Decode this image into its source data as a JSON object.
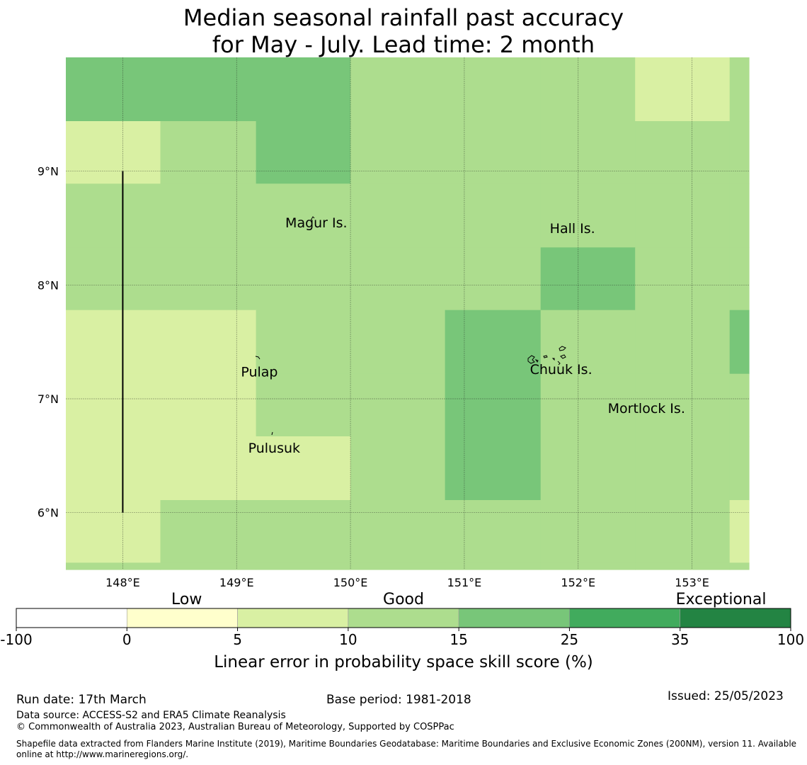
{
  "title": {
    "line1": "Median seasonal rainfall past accuracy",
    "line2": "for May - July. Lead time: 2 month"
  },
  "map": {
    "lon_range": [
      147.5,
      153.5
    ],
    "lat_range": [
      5.5,
      10.0
    ],
    "lon_ticks": [
      {
        "value": 148,
        "label": "148°E"
      },
      {
        "value": 149,
        "label": "149°E"
      },
      {
        "value": 150,
        "label": "150°E"
      },
      {
        "value": 151,
        "label": "151°E"
      },
      {
        "value": 152,
        "label": "152°E"
      },
      {
        "value": 153,
        "label": "153°E"
      }
    ],
    "lat_ticks": [
      {
        "value": 9,
        "label": "9°N"
      },
      {
        "value": 8,
        "label": "8°N"
      },
      {
        "value": 7,
        "label": "7°N"
      },
      {
        "value": 6,
        "label": "6°N"
      }
    ],
    "cell_lon_edges": [
      147.5,
      148.33,
      149.17,
      150.0,
      150.83,
      151.67,
      152.5,
      153.33,
      153.5
    ],
    "cell_lat_edges": [
      10.0,
      9.44,
      8.89,
      8.33,
      7.78,
      7.22,
      6.67,
      6.11,
      5.56,
      5.5
    ],
    "skill_class_grid": [
      [
        4,
        4,
        4,
        3,
        3,
        3,
        2,
        3
      ],
      [
        2,
        3,
        4,
        3,
        3,
        3,
        3,
        3
      ],
      [
        3,
        3,
        3,
        3,
        3,
        3,
        3,
        3
      ],
      [
        3,
        3,
        3,
        3,
        3,
        4,
        3,
        3
      ],
      [
        2,
        2,
        3,
        3,
        4,
        3,
        3,
        4
      ],
      [
        2,
        2,
        3,
        3,
        4,
        3,
        3,
        3
      ],
      [
        2,
        2,
        2,
        3,
        4,
        3,
        3,
        3
      ],
      [
        2,
        3,
        3,
        3,
        3,
        3,
        3,
        2
      ],
      [
        3,
        3,
        3,
        3,
        3,
        3,
        3,
        3
      ]
    ],
    "boundary_line": {
      "lon": 148.0,
      "lat_from": 6.0,
      "lat_to": 9.0
    },
    "islands": [
      {
        "name": "Magur Is.",
        "lon": 149.7,
        "lat": 8.55
      },
      {
        "name": "Hall Is.",
        "lon": 151.95,
        "lat": 8.5
      },
      {
        "name": "Pulap",
        "lon": 149.2,
        "lat": 7.24
      },
      {
        "name": "Chuuk Is.",
        "lon": 151.85,
        "lat": 7.26
      },
      {
        "name": "Mortlock Is.",
        "lon": 152.6,
        "lat": 6.92
      },
      {
        "name": "Pulusuk",
        "lon": 149.33,
        "lat": 6.57
      }
    ]
  },
  "colorbar": {
    "categories": [
      {
        "label": "Low",
        "position": 0.22
      },
      {
        "label": "Good",
        "position": 0.5
      },
      {
        "label": "Exceptional",
        "position": 0.91
      }
    ],
    "colors": [
      "#ffffff",
      "#ffffcc",
      "#d9f0a3",
      "#addd8e",
      "#78c679",
      "#41ab5d",
      "#238443"
    ],
    "ticks": [
      "-100",
      "0",
      "5",
      "10",
      "15",
      "25",
      "35",
      "100"
    ],
    "label": "Linear error in probability space skill score (%)"
  },
  "footer": {
    "run_date": "Run date: 17th March",
    "base_period": "Base period: 1981-2018",
    "issued": "Issued: 25/05/2023",
    "data_source": "Data source: ACCESS-S2 and ERA5 Climate Reanalysis",
    "copyright": "© Commonwealth of Australia 2023, Australian Bureau of Meteorology, Supported by COSPPac",
    "shapefile_line1": "Shapefile data extracted from Flanders Marine Institute (2019), Maritime Boundaries Geodatabase: Maritime Boundaries and Exclusive Economic Zones (200NM), version 11. Available",
    "shapefile_line2": "online at http://www.marineregions.org/."
  }
}
